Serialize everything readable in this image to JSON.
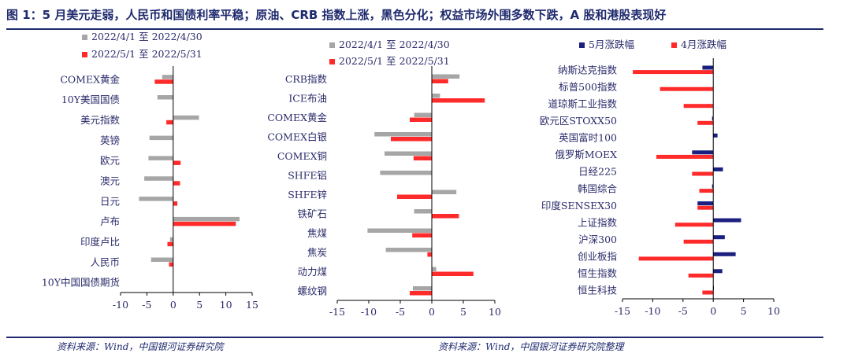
{
  "title": "图 1：5 月美元走弱，人民币和国债利率平稳；原油、CRB 指数上涨，黑色分化；权益市场外围多数下跌，A 股和港股表现好",
  "footer_left": "资料来源：Wind，中国银河证券研究院",
  "footer_right": "资料来源：Wind，中国银河证券研究院整理",
  "colors": {
    "gray": "#a6a6a6",
    "red": "#ff2a2a",
    "navy": "#1a1f80",
    "text": "#2b2b6b",
    "title": "#1f2a6e"
  },
  "chart_data": [
    {
      "type": "bar",
      "orientation": "horizontal",
      "categories": [
        "COMEX黄金",
        "10Y美国国债",
        "美元指数",
        "英镑",
        "欧元",
        "澳元",
        "日元",
        "卢布",
        "印度卢比",
        "人民币",
        "10Y中国国债期货"
      ],
      "series": [
        {
          "name": "2022/4/1 至 2022/4/30",
          "color": "#a6a6a6",
          "values": [
            -2.1,
            -3.0,
            4.9,
            -4.5,
            -4.7,
            -5.5,
            -6.5,
            12.6,
            -0.6,
            -4.2,
            0.0
          ]
        },
        {
          "name": "2022/5/1 至 2022/5/31",
          "color": "#ff2a2a",
          "values": [
            -3.5,
            0.0,
            -1.3,
            0.0,
            1.4,
            1.3,
            0.8,
            11.9,
            -1.1,
            -0.8,
            0.0
          ]
        }
      ],
      "xlim": [
        -10,
        15
      ],
      "xticks": [
        "-10",
        "-5",
        "0",
        "5",
        "10",
        "15"
      ],
      "legend": "top-left"
    },
    {
      "type": "bar",
      "orientation": "horizontal",
      "categories": [
        "CRB指数",
        "ICE布油",
        "COMEX黄金",
        "COMEX白银",
        "COMEX铜",
        "SHFE铝",
        "SHFE锌",
        "铁矿石",
        "焦煤",
        "焦炭",
        "动力煤",
        "螺纹钢"
      ],
      "series": [
        {
          "name": "2022/4/1 至 2022/4/30",
          "color": "#a6a6a6",
          "values": [
            4.4,
            1.3,
            -2.8,
            -9.1,
            -7.5,
            -8.2,
            3.9,
            -2.8,
            -10.2,
            -7.3,
            0.7,
            -3.0
          ]
        },
        {
          "name": "2022/5/1 至 2022/5/31",
          "color": "#ff2a2a",
          "values": [
            2.6,
            8.4,
            -3.5,
            -6.5,
            -2.9,
            0.0,
            -5.5,
            4.3,
            -3.1,
            -0.7,
            6.6,
            -3.5
          ]
        }
      ],
      "xlim": [
        -15,
        10
      ],
      "xticks": [
        "-15",
        "-10",
        "-5",
        "0",
        "5",
        "10"
      ],
      "legend": "top-left"
    },
    {
      "type": "bar",
      "orientation": "horizontal",
      "categories": [
        "纳斯达克指数",
        "标普500指数",
        "道琼斯工业指数",
        "欧元区STOXX50",
        "英国富时100",
        "俄罗斯MOEX",
        "日经225",
        "韩国综合",
        "印度SENSEX30",
        "上证指数",
        "沪深300",
        "创业板指",
        "恒生指数",
        "恒生科技"
      ],
      "series": [
        {
          "name": "5月涨跌幅",
          "color": "#1a1f80",
          "values": [
            -1.8,
            0.0,
            0.0,
            -0.2,
            0.7,
            -3.5,
            1.6,
            -0.2,
            -2.6,
            4.6,
            1.9,
            3.7,
            1.5,
            0.1
          ]
        },
        {
          "name": "4月涨跌幅",
          "color": "#ff2a2a",
          "values": [
            -13.3,
            -8.8,
            -4.9,
            -2.6,
            0.0,
            -9.4,
            -3.5,
            -2.3,
            -2.6,
            -6.3,
            -4.9,
            -12.3,
            -4.1,
            -1.8
          ]
        }
      ],
      "xlim": [
        -15,
        10
      ],
      "xticks": [
        "-15",
        "-10",
        "-5",
        "0",
        "5",
        "10"
      ],
      "legend": "top-left"
    }
  ]
}
